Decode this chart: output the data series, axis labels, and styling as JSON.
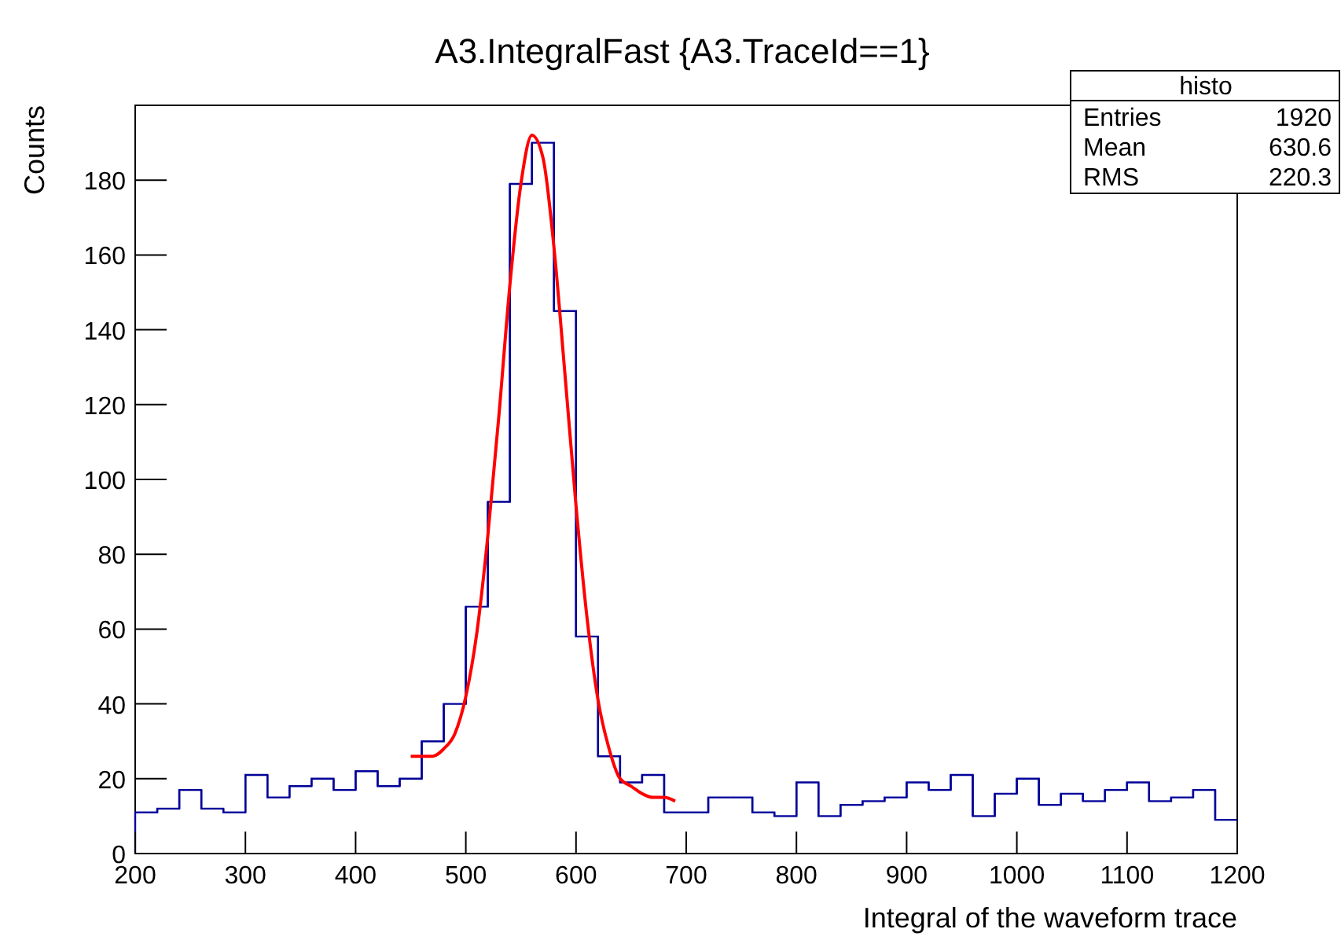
{
  "chart_data": {
    "type": "histogram",
    "title": "A3.IntegralFast {A3.TraceId==1}",
    "xlabel": "Integral of the waveform trace",
    "ylabel": "Counts",
    "bins": [
      200,
      220,
      240,
      260,
      280,
      300,
      320,
      340,
      360,
      380,
      400,
      420,
      440,
      460,
      480,
      500,
      520,
      540,
      560,
      580,
      600,
      620,
      640,
      660,
      680,
      700,
      720,
      740,
      760,
      780,
      800,
      820,
      840,
      860,
      880,
      900,
      920,
      940,
      960,
      980,
      1000,
      1020,
      1040,
      1060,
      1080,
      1100,
      1120,
      1140,
      1160,
      1180,
      1200
    ],
    "values": [
      11,
      12,
      17,
      12,
      11,
      21,
      15,
      18,
      20,
      17,
      22,
      18,
      20,
      30,
      40,
      66,
      94,
      179,
      190,
      145,
      58,
      26,
      19,
      21,
      11,
      11,
      15,
      15,
      11,
      10,
      19,
      10,
      13,
      14,
      15,
      19,
      17,
      21,
      10,
      16,
      20,
      13,
      16,
      14,
      17,
      19,
      14,
      15,
      17,
      9
    ],
    "color": "#000099",
    "series": [
      {
        "type": "line",
        "color": "#ff0000",
        "x": [
          450,
          460,
          470,
          480,
          490,
          500,
          510,
          520,
          530,
          540,
          550,
          560,
          570,
          580,
          590,
          600,
          610,
          620,
          630,
          640,
          650,
          660,
          670,
          680,
          690
        ],
        "values": [
          26,
          26,
          26,
          28,
          32,
          42,
          59,
          85,
          117,
          152,
          179,
          192,
          186,
          162,
          128,
          93,
          63,
          41,
          28,
          20,
          18,
          16,
          15,
          15,
          14
        ]
      }
    ],
    "xlim": [
      200,
      1200
    ],
    "xticks": [
      200,
      300,
      400,
      500,
      600,
      700,
      800,
      900,
      1000,
      1100,
      1200
    ],
    "ylim": [
      0,
      200
    ],
    "yticks": [
      0,
      20,
      40,
      60,
      80,
      100,
      120,
      140,
      160,
      180
    ],
    "grid": false,
    "annotations": [
      "histo",
      "Entries",
      "1920",
      "Mean",
      "630.6",
      "RMS",
      "220.3"
    ]
  }
}
